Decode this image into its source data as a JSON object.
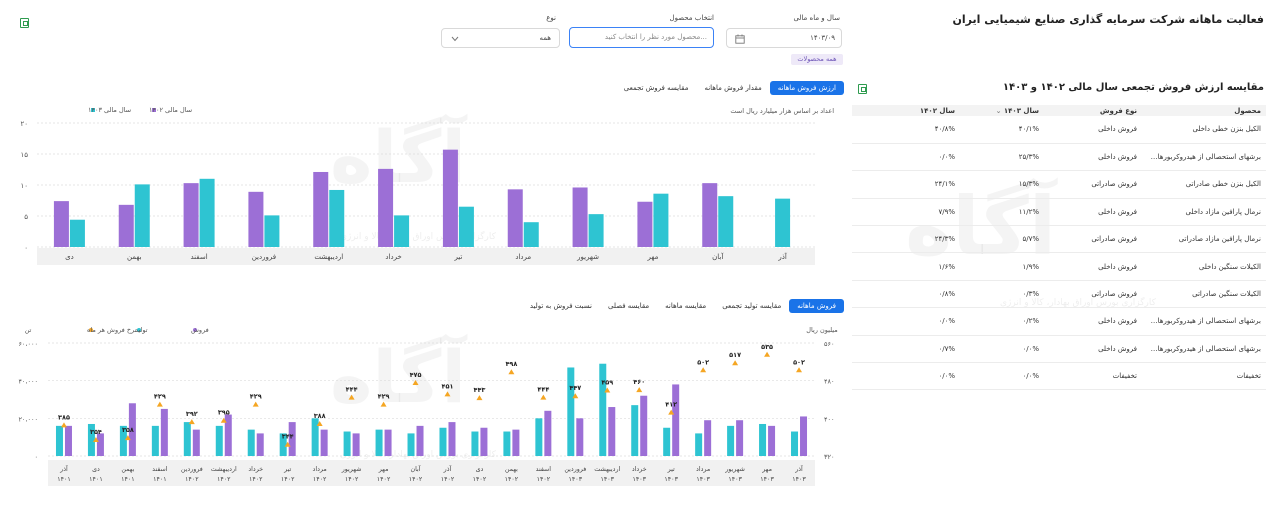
{
  "page": {
    "title": "فعالیت ماهانه شرکت سرمایه گذاری صنایع شیمیایی ایران"
  },
  "filters": {
    "date_label": "سال و ماه مالی",
    "date_value": "۱۴۰۳/۰۹",
    "product_label": "انتخاب محصول",
    "product_placeholder": "محصول مورد نظر را انتخاب کنید...",
    "type_label": "نوع",
    "type_value": "همه",
    "hint": "همه محصولات"
  },
  "watermark": {
    "text": "آگاه",
    "subtitle": "کارگزاری بورس اوراق بهادار، کالا و انرژی"
  },
  "comparison": {
    "title": "مقایسه ارزش فروش تجمعی سال مالی ۱۴۰۲ و ۱۴۰۳",
    "headers": [
      "محصول",
      "نوع فروش",
      "سال ۱۴۰۳",
      "سال ۱۴۰۲"
    ],
    "rows": [
      {
        "product": "الکیل بنزن خطی داخلی",
        "type": "فروش داخلی",
        "y1403": "۴۰/۱%",
        "y1402": "۴۰/۸%"
      },
      {
        "product": "برشهای استحصالی از هیدروکربورهای تهیه ...",
        "type": "فروش داخلی",
        "y1403": "۲۵/۳%",
        "y1402": "۰/۰%"
      },
      {
        "product": "الکیل بنزن خطی صادراتی",
        "type": "فروش صادراتی",
        "y1403": "۱۵/۳%",
        "y1402": "۲۴/۱%"
      },
      {
        "product": "نرمال پارافین مازاد داخلی",
        "type": "فروش داخلی",
        "y1403": "۱۱/۲%",
        "y1402": "۷/۹%"
      },
      {
        "product": "نرمال پارافین مازاد صادراتی",
        "type": "فروش صادراتی",
        "y1403": "۵/۷%",
        "y1402": "۲۴/۳%"
      },
      {
        "product": "الکیلات سنگین داخلی",
        "type": "فروش داخلی",
        "y1403": "۱/۹%",
        "y1402": "۱/۶%"
      },
      {
        "product": "الکیلات سنگین صادراتی",
        "type": "فروش صادراتی",
        "y1403": "۰/۳%",
        "y1402": "۰/۸%"
      },
      {
        "product": "برشهای استحصالی از هیدروکربورهای تهیه ...",
        "type": "فروش داخلی",
        "y1403": "۰/۲%",
        "y1402": "۰/۰%"
      },
      {
        "product": "برشهای استحصالی از هیدروکربورهای تهیه ...",
        "type": "فروش داخلی",
        "y1403": "۰/۰%",
        "y1402": "۰/۷%"
      },
      {
        "product": "تخفیفات",
        "type": "تخفیفات",
        "y1403": "۰/۰%",
        "y1402": "۰/۰%"
      }
    ]
  },
  "chart1_ui": {
    "tabs": [
      "ارزش فروش ماهانه",
      "مقدار فروش ماهانه",
      "مقایسه فروش تجمعی"
    ],
    "active_tab": 0,
    "note": "اعداد بر اساس هزار میلیارد ریال است"
  },
  "chart2_ui": {
    "tabs": [
      "فروش ماهانه",
      "مقایسه تولید تجمعی",
      "مقایسه ماهانه",
      "مقایسه فصلی",
      "نسبت فروش به تولید"
    ],
    "active_tab": 0,
    "left_unit": "تن",
    "right_unit": "میلیون ریال"
  },
  "colors": {
    "teal": "#2ec4d2",
    "purple": "#9c6fd6",
    "orange": "#f5a623",
    "accent": "#1a73e8"
  },
  "chart_data": [
    {
      "type": "bar",
      "legend_position": "top-left",
      "categories": [
        "آذر",
        "آبان",
        "مهر",
        "شهریور",
        "مرداد",
        "تیر",
        "خرداد",
        "اردیبهشت",
        "فروردین",
        "اسفند",
        "بهمن",
        "دی"
      ],
      "series": [
        {
          "name": "سال مالی ۱۴۰۳",
          "color": "#2ec4d2",
          "values": [
            7.8,
            8.2,
            8.6,
            5.3,
            4.0,
            6.5,
            5.1,
            9.2,
            5.1,
            11.0,
            10.1,
            4.4
          ]
        },
        {
          "name": "سال مالی ۱۴۰۲",
          "color": "#9c6fd6",
          "values": [
            null,
            10.3,
            7.3,
            9.6,
            9.3,
            15.7,
            12.6,
            12.1,
            8.9,
            10.3,
            6.8,
            7.4
          ]
        }
      ],
      "yticks": [
        0,
        5,
        10,
        15,
        20
      ],
      "ylim": [
        0,
        20
      ],
      "grid": true
    },
    {
      "type": "bar",
      "legend_position": "top-right",
      "categories": [
        "آذر ۱۴۰۳",
        "مهر ۱۴۰۳",
        "شهریور ۱۴۰۳",
        "مرداد ۱۴۰۳",
        "تیر ۱۴۰۳",
        "خرداد ۱۴۰۳",
        "اردیبهشت ۱۴۰۳",
        "فروردین ۱۴۰۳",
        "اسفند ۱۴۰۲",
        "بهمن ۱۴۰۲",
        "دی ۱۴۰۲",
        "آذر ۱۴۰۲",
        "آبان ۱۴۰۲",
        "مهر ۱۴۰۲",
        "شهریور ۱۴۰۲",
        "مرداد ۱۴۰۲",
        "تیر ۱۴۰۲",
        "خرداد ۱۴۰۲",
        "اردیبهشت ۱۴۰۲",
        "فروردین ۱۴۰۲",
        "اسفند ۱۴۰۱",
        "بهمن ۱۴۰۱",
        "دی ۱۴۰۱",
        "آذر ۱۴۰۱"
      ],
      "series": [
        {
          "name": "فروش",
          "color": "#9c6fd6",
          "axis": "left",
          "values": [
            21000,
            16000,
            19000,
            19000,
            38000,
            32000,
            26000,
            20000,
            24000,
            14000,
            15000,
            18000,
            16000,
            14000,
            12000,
            14000,
            18000,
            12000,
            22000,
            14000,
            25000,
            28000,
            12000,
            16000
          ]
        },
        {
          "name": "تولید",
          "color": "#2ec4d2",
          "axis": "left",
          "values": [
            13000,
            17000,
            16000,
            12000,
            15000,
            27000,
            49000,
            47000,
            20000,
            13000,
            13000,
            15000,
            12000,
            14000,
            13000,
            20000,
            12000,
            14000,
            16000,
            18000,
            16000,
            16000,
            17000,
            16000
          ]
        },
        {
          "name": "نرخ فروش هر ماه",
          "color": "#f5a623",
          "axis": "right",
          "labels": [
            "۵۰۲",
            "۵۳۵",
            "۵۱۷",
            "۵۰۲",
            "۴۱۲",
            "۴۶۰",
            "۴۵۹",
            "۴۴۷",
            "۴۴۴",
            "۴۹۸",
            "۴۴۳",
            "۴۵۱",
            "۴۷۵",
            "۴۲۹",
            "۴۴۴",
            "۳۸۸",
            "۳۴۴",
            "۴۲۹",
            "۳۹۵",
            "۳۹۲",
            "۴۲۹",
            "۳۵۸",
            "۳۵۴",
            "۳۸۵"
          ],
          "values": [
            502,
            535,
            517,
            502,
            412,
            460,
            459,
            447,
            444,
            498,
            443,
            451,
            475,
            429,
            444,
            388,
            344,
            429,
            395,
            392,
            429,
            358,
            354,
            385
          ]
        }
      ],
      "yticks_left": [
        "۰",
        "۲۰،۰۰۰",
        "۴۰،۰۰۰",
        "۶۰،۰۰۰"
      ],
      "ylim_left": [
        0,
        60000
      ],
      "yticks_right": [
        "۳۲۰",
        "۴۰۰",
        "۴۸۰",
        "۵۶۰"
      ],
      "ylim_right": [
        320,
        560
      ],
      "grid": true
    }
  ]
}
